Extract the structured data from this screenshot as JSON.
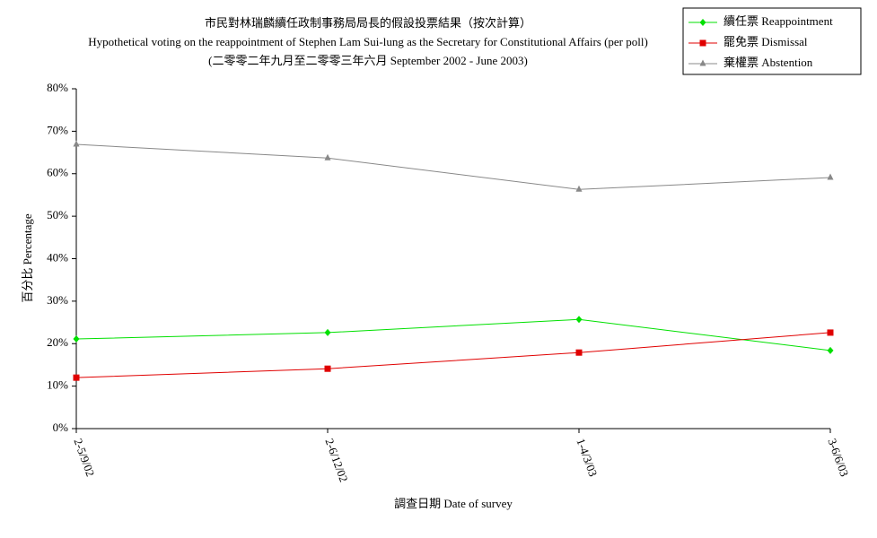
{
  "chart_data": {
    "type": "line",
    "title": "市民對林瑞麟續任政制事務局局長的假設投票結果（按次計算）",
    "subtitle": "Hypothetical voting on the reappointment of Stephen Lam Sui-lung as the Secretary for Constitutional Affairs (per poll)",
    "subtitle2": "(二零零二年九月至二零零三年六月 September 2002 - June 2003)",
    "x_label": "調查日期 Date of survey",
    "y_label": "百分比 Percentage",
    "categories": [
      "2-5/9/02",
      "2-6/12/02",
      "1-4/3/03",
      "3-6/6/03"
    ],
    "series": [
      {
        "name": "續任票  Reappointment",
        "color": "#00e000",
        "marker": "diamond",
        "values": [
          21.1,
          22.6,
          25.7,
          18.4
        ]
      },
      {
        "name": "罷免票  Dismissal",
        "color": "#e00000",
        "marker": "square",
        "values": [
          12.0,
          14.1,
          17.9,
          22.6
        ]
      },
      {
        "name": "棄權票  Abstention",
        "color": "#888888",
        "marker": "triangle",
        "values": [
          66.9,
          63.7,
          56.3,
          59.1
        ]
      }
    ],
    "ylim": [
      0,
      80
    ],
    "yticks": [
      {
        "value": 0,
        "label": "0%"
      },
      {
        "value": 10,
        "label": "10%"
      },
      {
        "value": 20,
        "label": "20%"
      },
      {
        "value": 30,
        "label": "30%"
      },
      {
        "value": 40,
        "label": "40%"
      },
      {
        "value": 50,
        "label": "50%"
      },
      {
        "value": 60,
        "label": "60%"
      },
      {
        "value": 70,
        "label": "70%"
      },
      {
        "value": 80,
        "label": "80%"
      }
    ],
    "legend": "top-right"
  }
}
